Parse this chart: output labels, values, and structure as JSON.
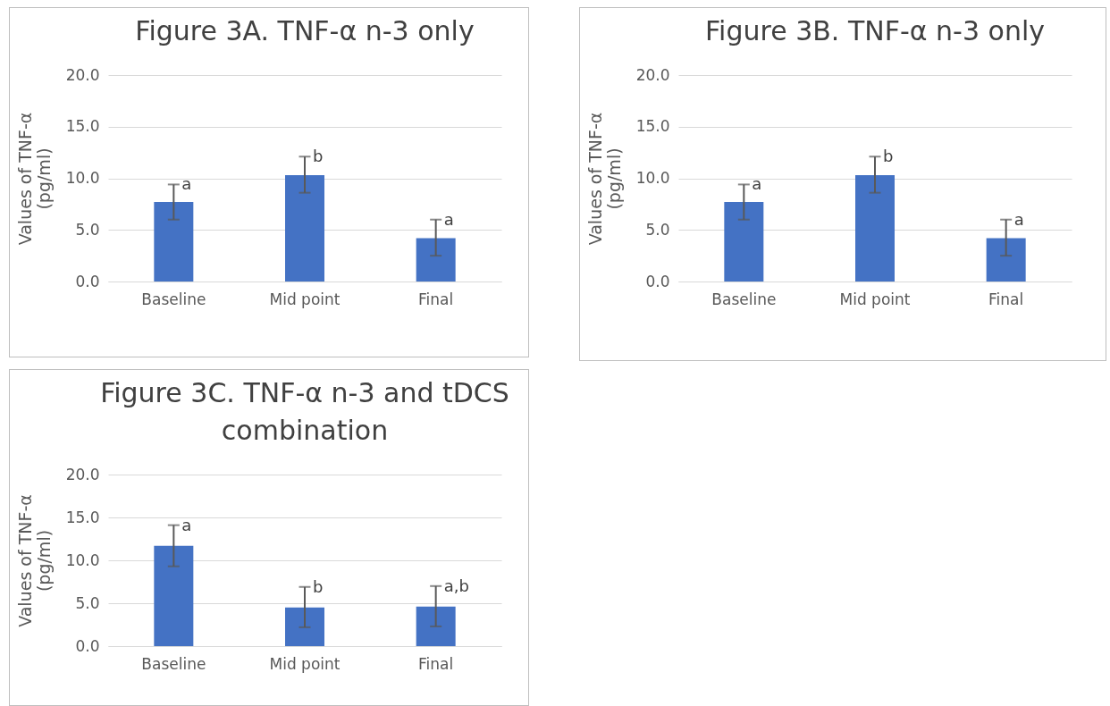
{
  "chart_data": [
    {
      "type": "bar",
      "title": "Figure 3A. TNF-α n-3 only",
      "ylabel": "Values of TNF-α (pg/ml)",
      "categories": [
        "Baseline",
        "Mid point",
        "Final"
      ],
      "series": [
        {
          "color": "#4472c4",
          "values": [
            7.7,
            10.3,
            4.2
          ],
          "errors": [
            [
              6.0,
              9.4
            ],
            [
              8.6,
              12.1
            ],
            [
              2.5,
              6.0
            ]
          ]
        }
      ],
      "ylim": [
        0,
        20
      ],
      "yticks": [
        {
          "value": 0,
          "label": "0.0"
        },
        {
          "value": 5,
          "label": "5.0"
        },
        {
          "value": 10,
          "label": "10.0"
        },
        {
          "value": 15,
          "label": "15.0"
        },
        {
          "value": 20,
          "label": "20.0"
        }
      ],
      "grid": "y",
      "annotations": [
        {
          "text": "a",
          "x": "Baseline",
          "y": 9.4
        },
        {
          "text": "b",
          "x": "Mid point",
          "y": 12.1
        },
        {
          "text": "a",
          "x": "Final",
          "y": 6.0
        }
      ]
    },
    {
      "type": "bar",
      "title": "Figure 3B. TNF-α n-3 only",
      "ylabel": "Values of TNF-α (pg/ml)",
      "categories": [
        "Baseline",
        "Mid point",
        "Final"
      ],
      "series": [
        {
          "color": "#4472c4",
          "values": [
            7.7,
            10.3,
            4.2
          ],
          "errors": [
            [
              6.0,
              9.4
            ],
            [
              8.6,
              12.1
            ],
            [
              2.5,
              6.0
            ]
          ]
        }
      ],
      "ylim": [
        0,
        20
      ],
      "yticks": [
        {
          "value": 0,
          "label": "0.0"
        },
        {
          "value": 5,
          "label": "5.0"
        },
        {
          "value": 10,
          "label": "10.0"
        },
        {
          "value": 15,
          "label": "15.0"
        },
        {
          "value": 20,
          "label": "20.0"
        }
      ],
      "grid": "y",
      "annotations": [
        {
          "text": "a",
          "x": "Baseline",
          "y": 9.4
        },
        {
          "text": "b",
          "x": "Mid point",
          "y": 12.1
        },
        {
          "text": "a",
          "x": "Final",
          "y": 6.0
        }
      ]
    },
    {
      "type": "bar",
      "title": "Figure 3C. TNF-α n-3 and tDCS combination",
      "ylabel": "Values of TNF-α (pg/ml)",
      "categories": [
        "Baseline",
        "Mid point",
        "Final"
      ],
      "series": [
        {
          "color": "#4472c4",
          "values": [
            11.7,
            4.5,
            4.6
          ],
          "errors": [
            [
              9.3,
              14.1
            ],
            [
              2.2,
              6.9
            ],
            [
              2.3,
              7.0
            ]
          ]
        }
      ],
      "ylim": [
        0,
        20
      ],
      "yticks": [
        {
          "value": 0,
          "label": "0.0"
        },
        {
          "value": 5,
          "label": "5.0"
        },
        {
          "value": 10,
          "label": "10.0"
        },
        {
          "value": 15,
          "label": "15.0"
        },
        {
          "value": 20,
          "label": "20.0"
        }
      ],
      "grid": "y",
      "annotations": [
        {
          "text": "a",
          "x": "Baseline",
          "y": 14.1
        },
        {
          "text": "b",
          "x": "Mid point",
          "y": 6.9
        },
        {
          "text": "a,b",
          "x": "Final",
          "y": 7.0
        }
      ]
    }
  ]
}
